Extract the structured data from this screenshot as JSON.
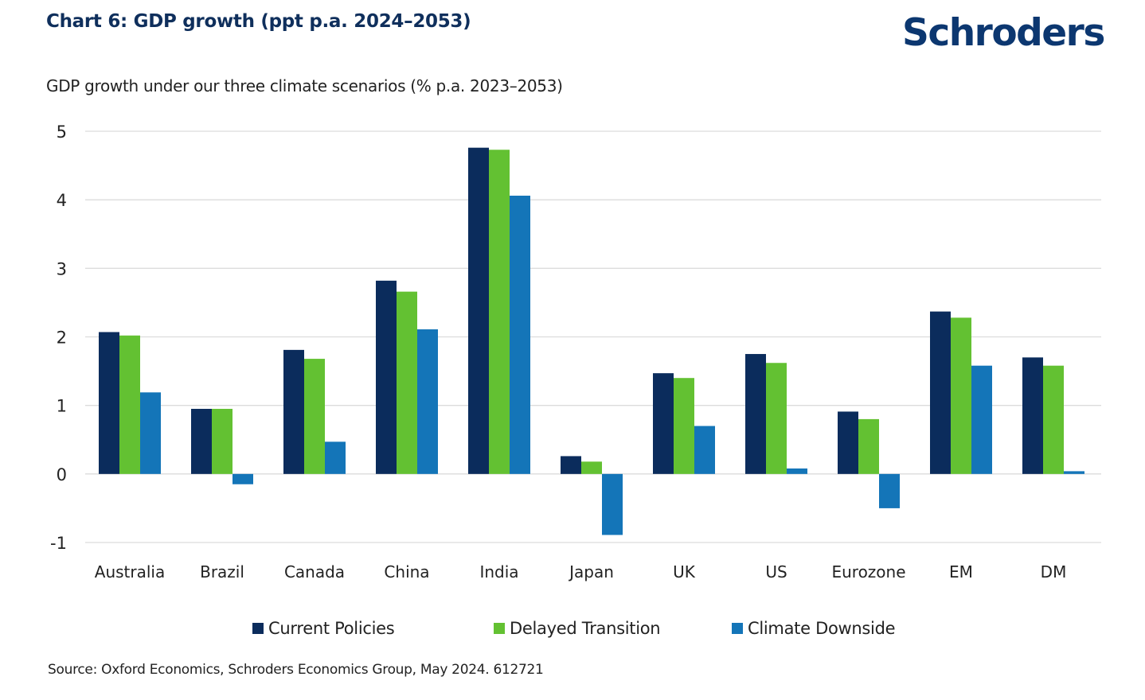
{
  "header": {
    "chart_title": "Chart 6: GDP growth (ppt p.a. 2024–2053)",
    "logo_text": "Schroders"
  },
  "footer": {
    "source": "Source: Oxford Economics, Schroders Economics Group, May 2024. 612721"
  },
  "colors": {
    "current_policies": "#0b2c5c",
    "delayed_transition": "#63c132",
    "climate_downside": "#1475b8",
    "gridline": "#dcdcdc"
  },
  "chart_data": {
    "type": "bar",
    "title": "GDP growth under our three climate scenarios (% p.a. 2023–2053)",
    "xlabel": "",
    "ylabel": "",
    "ylim": [
      -1,
      5
    ],
    "yticks": [
      5,
      4,
      3,
      2,
      1,
      0,
      -1
    ],
    "grid": true,
    "legend_position": "bottom",
    "categories": [
      "Australia",
      "Brazil",
      "Canada",
      "China",
      "India",
      "Japan",
      "UK",
      "US",
      "Eurozone",
      "EM",
      "DM"
    ],
    "series": [
      {
        "name": "Current Policies",
        "values": [
          2.07,
          0.95,
          1.81,
          2.82,
          4.76,
          0.26,
          1.47,
          1.75,
          0.91,
          2.37,
          1.7
        ]
      },
      {
        "name": "Delayed Transition",
        "values": [
          2.02,
          0.95,
          1.68,
          2.66,
          4.73,
          0.18,
          1.4,
          1.62,
          0.8,
          2.28,
          1.58
        ]
      },
      {
        "name": "Climate Downside",
        "values": [
          1.19,
          -0.15,
          0.47,
          2.11,
          4.06,
          -0.89,
          0.7,
          0.08,
          -0.5,
          1.58,
          0.04
        ]
      }
    ]
  }
}
